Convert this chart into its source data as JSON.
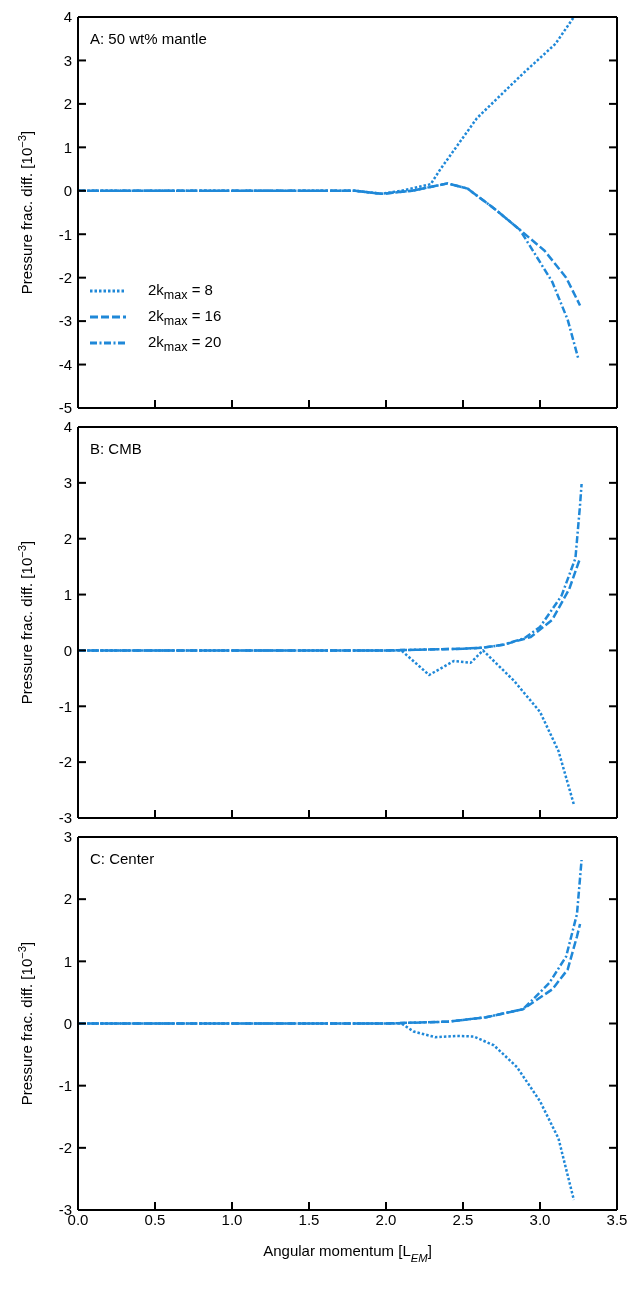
{
  "chart_data": [
    {
      "type": "line",
      "annotations": [
        "A: 50 wt% mantle"
      ],
      "ylabel": "Pressure frac. diff. [10$^{−3}$]",
      "xlim": [
        0,
        3.5
      ],
      "xticks": [
        0,
        0.5,
        1,
        1.5,
        2,
        2.5,
        3,
        3.5
      ],
      "ylim": [
        -5,
        4
      ],
      "yticks": [
        -5,
        -4,
        -3,
        -2,
        -1,
        0,
        1,
        2,
        3,
        4
      ],
      "tick_labels": "y",
      "legend": "bottom left",
      "grid": false,
      "series": [
        {
          "name": "2k$_{max}$ = 8",
          "color": "#1f88d8",
          "line_style": "dotted",
          "x": [
            0,
            1.0,
            1.8,
            1.97,
            2.1,
            2.29,
            2.35,
            2.59,
            2.89,
            3.1,
            3.22
          ],
          "values": [
            0,
            0,
            0,
            -0.07,
            0,
            0.15,
            0.48,
            1.67,
            2.7,
            3.38,
            4.0
          ]
        },
        {
          "name": "2k$_{max}$ = 16",
          "color": "#1f88d8",
          "line_style": "dashed",
          "x": [
            0,
            1.0,
            1.8,
            1.97,
            2.17,
            2.4,
            2.53,
            2.71,
            2.87,
            3.03,
            3.17,
            3.26
          ],
          "values": [
            0,
            0,
            0,
            -0.07,
            0,
            0.17,
            0.05,
            -0.43,
            -0.9,
            -1.38,
            -2.0,
            -2.64
          ]
        },
        {
          "name": "2k$_{max}$ = 20",
          "color": "#1f88d8",
          "line_style": "dashdot",
          "x": [
            0,
            1.0,
            1.8,
            1.97,
            2.17,
            2.4,
            2.53,
            2.71,
            2.87,
            3.08,
            3.18,
            3.25
          ],
          "values": [
            0,
            0,
            0,
            -0.07,
            0,
            0.17,
            0.05,
            -0.43,
            -0.9,
            -2.1,
            -2.97,
            -3.88
          ]
        }
      ]
    },
    {
      "type": "line",
      "annotations": [
        "B: CMB"
      ],
      "ylabel": "Pressure frac. diff. [10$^{−3}$]",
      "xlim": [
        0,
        3.5
      ],
      "xticks": [
        0,
        0.5,
        1,
        1.5,
        2,
        2.5,
        3,
        3.5
      ],
      "ylim": [
        -3,
        4
      ],
      "yticks": [
        -3,
        -2,
        -1,
        0,
        1,
        2,
        3,
        4
      ],
      "tick_labels": "y",
      "grid": false,
      "series": [
        {
          "color": "#1f88d8",
          "line_style": "dotted",
          "x": [
            0,
            1.0,
            2.0,
            2.1,
            2.28,
            2.44,
            2.55,
            2.63,
            2.83,
            3.0,
            3.12,
            3.22
          ],
          "values": [
            0,
            0,
            0,
            0,
            -0.44,
            -0.19,
            -0.22,
            0,
            -0.54,
            -1.1,
            -1.8,
            -2.76
          ]
        },
        {
          "color": "#1f88d8",
          "line_style": "dashed",
          "x": [
            0,
            1.0,
            2.0,
            2.5,
            2.63,
            2.76,
            2.94,
            3.08,
            3.19,
            3.26
          ],
          "values": [
            0,
            0,
            0,
            0.03,
            0.05,
            0.1,
            0.24,
            0.55,
            1.1,
            1.65
          ]
        },
        {
          "color": "#1f88d8",
          "line_style": "dashdot",
          "x": [
            0,
            1.0,
            2.0,
            2.5,
            2.63,
            2.76,
            2.9,
            3.0,
            3.14,
            3.23,
            3.26,
            3.27
          ],
          "values": [
            0,
            0,
            0,
            0.03,
            0.05,
            0.1,
            0.22,
            0.42,
            0.98,
            1.65,
            2.6,
            2.98
          ]
        }
      ]
    },
    {
      "type": "line",
      "annotations": [
        "C: Center"
      ],
      "ylabel": "Pressure frac. diff. [10$^{−3}$]",
      "xlabel": "Angular momentum [L$_{EM}$]",
      "xlim": [
        0,
        3.5
      ],
      "xticks": [
        {
          "value": 0,
          "label": "0.0"
        },
        {
          "value": 0.5,
          "label": "0.5"
        },
        {
          "value": 1,
          "label": "1.0"
        },
        {
          "value": 1.5,
          "label": "1.5"
        },
        {
          "value": 2,
          "label": "2.0"
        },
        {
          "value": 2.5,
          "label": "2.5"
        },
        {
          "value": 3,
          "label": "3.0"
        },
        {
          "value": 3.5,
          "label": "3.5"
        }
      ],
      "ylim": [
        -3,
        3
      ],
      "yticks": [
        -3,
        -2,
        -1,
        0,
        1,
        2,
        3
      ],
      "grid": false,
      "series": [
        {
          "color": "#1f88d8",
          "line_style": "dotted",
          "x": [
            0,
            1.0,
            2.0,
            2.1,
            2.18,
            2.32,
            2.46,
            2.57,
            2.7,
            2.85,
            3.0,
            3.12,
            3.22
          ],
          "values": [
            0,
            0,
            0,
            0,
            -0.13,
            -0.22,
            -0.2,
            -0.21,
            -0.35,
            -0.7,
            -1.25,
            -1.85,
            -2.84
          ]
        },
        {
          "color": "#1f88d8",
          "line_style": "dashed",
          "x": [
            0,
            1.0,
            2.0,
            2.4,
            2.65,
            2.89,
            3.08,
            3.18,
            3.24,
            3.26
          ],
          "values": [
            0,
            0,
            0,
            0.03,
            0.1,
            0.23,
            0.55,
            0.87,
            1.4,
            1.6
          ]
        },
        {
          "color": "#1f88d8",
          "line_style": "dashdot",
          "x": [
            0,
            1.0,
            2.0,
            2.4,
            2.65,
            2.89,
            3.06,
            3.17,
            3.24,
            3.27
          ],
          "values": [
            0,
            0,
            0,
            0.03,
            0.1,
            0.23,
            0.65,
            1.08,
            1.76,
            2.63
          ]
        }
      ]
    }
  ]
}
